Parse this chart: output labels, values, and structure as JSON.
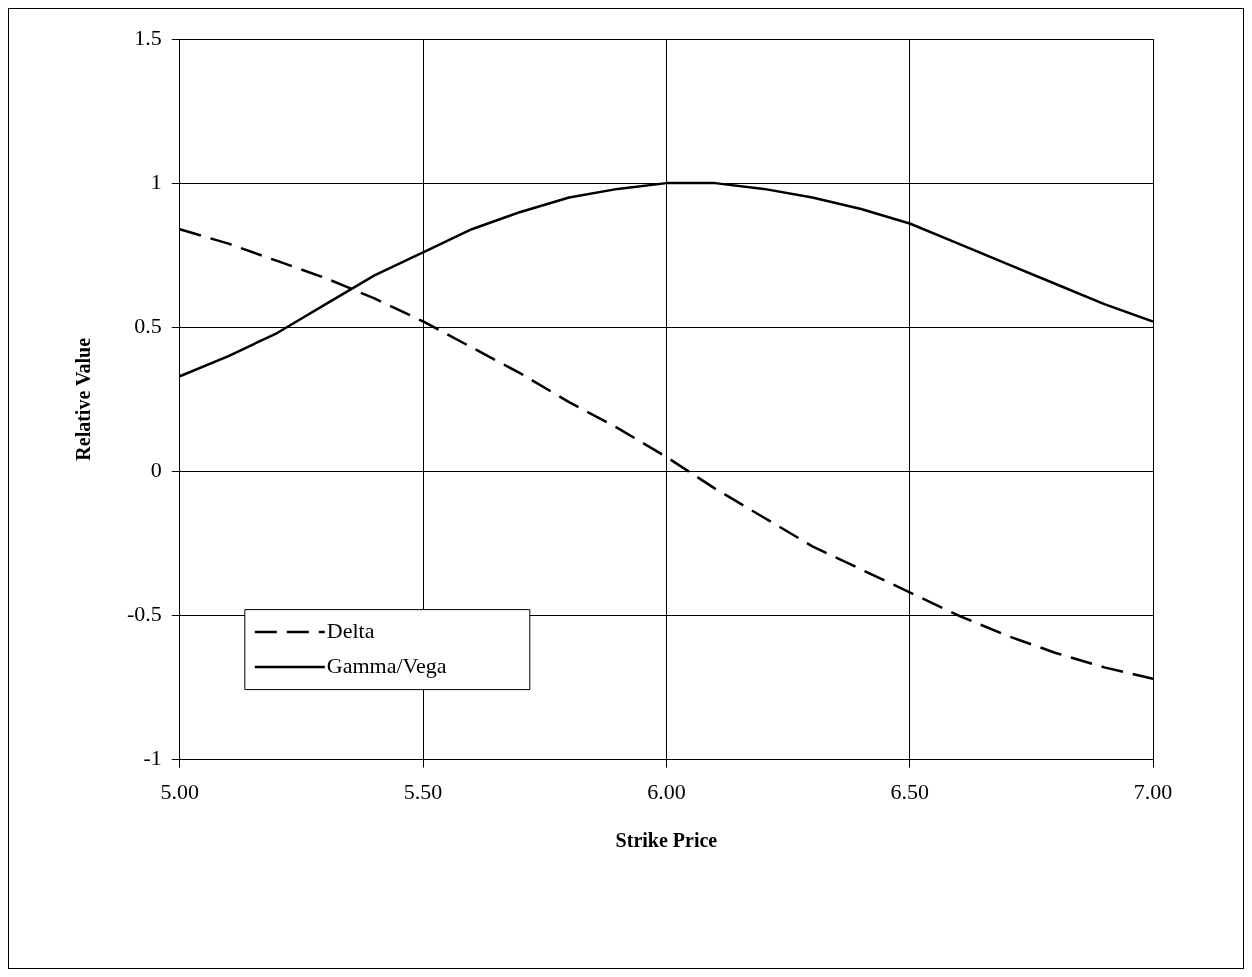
{
  "chart_data": {
    "type": "line",
    "xlabel": "Strike Price",
    "ylabel": "Relative Value",
    "x": [
      5.0,
      5.1,
      5.2,
      5.3,
      5.4,
      5.5,
      5.6,
      5.7,
      5.8,
      5.9,
      6.0,
      6.1,
      6.2,
      6.3,
      6.4,
      6.5,
      6.6,
      6.7,
      6.8,
      6.9,
      7.0
    ],
    "series": [
      {
        "name": "Delta",
        "color": "#000000",
        "line_style": "dashed",
        "values": [
          0.84,
          0.79,
          0.73,
          0.67,
          0.6,
          0.52,
          0.43,
          0.34,
          0.24,
          0.15,
          0.05,
          -0.06,
          -0.16,
          -0.26,
          -0.34,
          -0.42,
          -0.5,
          -0.57,
          -0.63,
          -0.68,
          -0.72
        ]
      },
      {
        "name": "Gamma/Vega",
        "color": "#000000",
        "line_style": "solid",
        "values": [
          0.33,
          0.4,
          0.48,
          0.58,
          0.68,
          0.76,
          0.84,
          0.9,
          0.95,
          0.98,
          1.0,
          1.0,
          0.98,
          0.95,
          0.91,
          0.86,
          0.79,
          0.72,
          0.65,
          0.58,
          0.52
        ]
      }
    ],
    "xlim": [
      5,
      7
    ],
    "xticks": [
      {
        "value": 5,
        "label": "5.00"
      },
      {
        "value": 5.5,
        "label": "5.50"
      },
      {
        "value": 6,
        "label": "6.00"
      },
      {
        "value": 6.5,
        "label": "6.50"
      },
      {
        "value": 7,
        "label": "7.00"
      }
    ],
    "ylim": [
      -1,
      1.5
    ],
    "yticks": [
      -1,
      -0.5,
      0,
      0.5,
      1,
      1.5
    ],
    "grid": true,
    "legend": "bottom left",
    "marker": "none"
  }
}
